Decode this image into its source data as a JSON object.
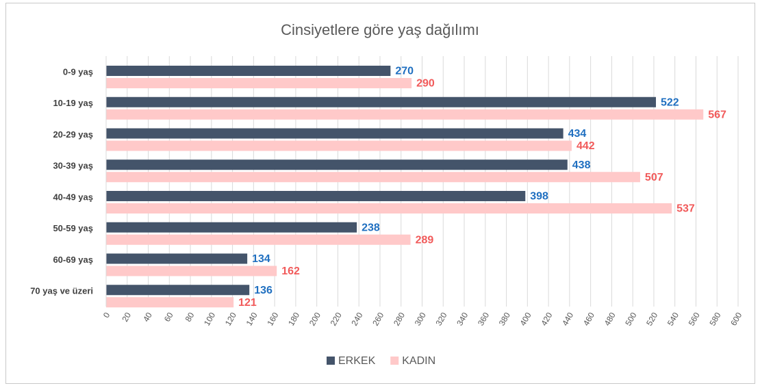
{
  "chart_data": {
    "type": "hbar",
    "title": "Cinsiyetlere göre yaş dağılımı",
    "categories": [
      "0-9 yaş",
      "10-19 yaş",
      "20-29 yaş",
      "30-39 yaş",
      "40-49 yaş",
      "50-59 yaş",
      "60-69 yaş",
      "70 yaş ve üzeri"
    ],
    "series": [
      {
        "name": "ERKEK",
        "color": "#44546a",
        "label_color": "#1f6fc0",
        "values": [
          270,
          522,
          434,
          438,
          398,
          238,
          134,
          136
        ]
      },
      {
        "name": "KADIN",
        "color": "#ffc9c9",
        "label_color": "#f15a5a",
        "values": [
          290,
          567,
          442,
          507,
          537,
          289,
          162,
          121
        ]
      }
    ],
    "xlim": [
      0,
      600
    ],
    "xticks": [
      0,
      20,
      40,
      60,
      80,
      100,
      120,
      140,
      160,
      180,
      200,
      220,
      240,
      260,
      280,
      300,
      320,
      340,
      360,
      380,
      400,
      420,
      440,
      460,
      480,
      500,
      520,
      540,
      560,
      580,
      600
    ],
    "grid": true,
    "legend": "bottom"
  }
}
